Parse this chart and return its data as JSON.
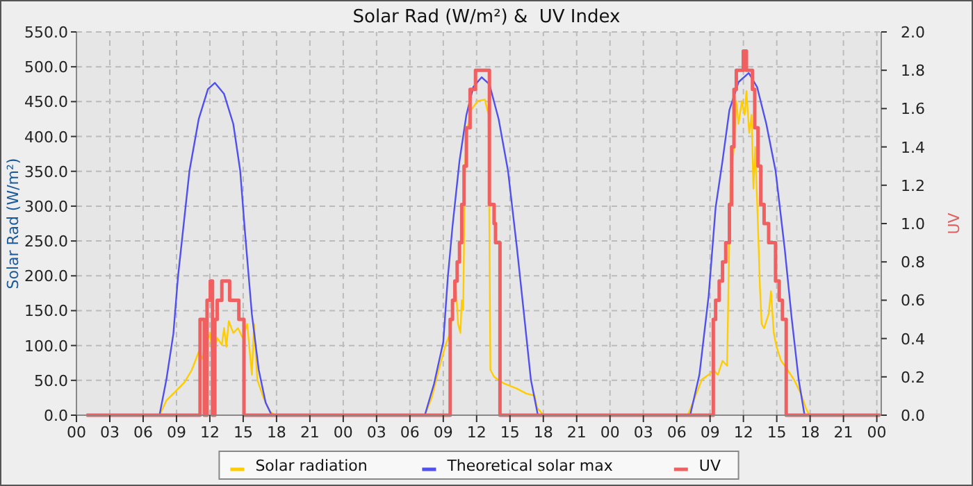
{
  "chart_data": {
    "type": "line",
    "title": "Solar Rad (W/m²) &  UV Index",
    "ylabel": "Solar Rad (W/m²)",
    "y2label": "UV",
    "xlim": [
      0,
      72.4
    ],
    "xticks": [
      {
        "value": 0,
        "label": "00"
      },
      {
        "value": 3,
        "label": "03"
      },
      {
        "value": 6,
        "label": "06"
      },
      {
        "value": 9,
        "label": "09"
      },
      {
        "value": 12,
        "label": "12"
      },
      {
        "value": 15,
        "label": "15"
      },
      {
        "value": 18,
        "label": "18"
      },
      {
        "value": 21,
        "label": "21"
      },
      {
        "value": 24,
        "label": "00"
      },
      {
        "value": 27,
        "label": "03"
      },
      {
        "value": 30,
        "label": "06"
      },
      {
        "value": 33,
        "label": "09"
      },
      {
        "value": 36,
        "label": "12"
      },
      {
        "value": 39,
        "label": "15"
      },
      {
        "value": 42,
        "label": "18"
      },
      {
        "value": 45,
        "label": "21"
      },
      {
        "value": 48,
        "label": "00"
      },
      {
        "value": 51,
        "label": "03"
      },
      {
        "value": 54,
        "label": "06"
      },
      {
        "value": 57,
        "label": "09"
      },
      {
        "value": 60,
        "label": "12"
      },
      {
        "value": 63,
        "label": "15"
      },
      {
        "value": 66,
        "label": "18"
      },
      {
        "value": 69,
        "label": "21"
      },
      {
        "value": 72,
        "label": "00"
      }
    ],
    "ylim": [
      0,
      550
    ],
    "yticks": [
      {
        "value": 0,
        "label": "0.0"
      },
      {
        "value": 50,
        "label": "50.0"
      },
      {
        "value": 100,
        "label": "100.0"
      },
      {
        "value": 150,
        "label": "150.0"
      },
      {
        "value": 200,
        "label": "200.0"
      },
      {
        "value": 250,
        "label": "250.0"
      },
      {
        "value": 300,
        "label": "300.0"
      },
      {
        "value": 350,
        "label": "350.0"
      },
      {
        "value": 400,
        "label": "400.0"
      },
      {
        "value": 450,
        "label": "450.0"
      },
      {
        "value": 500,
        "label": "500.0"
      },
      {
        "value": 550,
        "label": "550.0"
      }
    ],
    "y2lim": [
      0,
      2
    ],
    "y2ticks": [
      {
        "value": 0,
        "label": "0.0"
      },
      {
        "value": 0.2,
        "label": "0.2"
      },
      {
        "value": 0.4,
        "label": "0.4"
      },
      {
        "value": 0.6,
        "label": "0.6"
      },
      {
        "value": 0.8,
        "label": "0.8"
      },
      {
        "value": 1,
        "label": "1.0"
      },
      {
        "value": 1.2,
        "label": "1.2"
      },
      {
        "value": 1.4,
        "label": "1.4"
      },
      {
        "value": 1.6,
        "label": "1.6"
      },
      {
        "value": 1.8,
        "label": "1.8"
      },
      {
        "value": 2,
        "label": "2.0"
      }
    ],
    "grid": true,
    "legend": "bottom",
    "line_style": "solid",
    "series": [
      {
        "name": "Solar radiation",
        "color": "#ffcc00",
        "x": [
          0.9,
          7.47,
          8.09,
          8.72,
          9.34,
          9.75,
          10.38,
          11.0,
          11.33,
          11.5,
          12.04,
          12.24,
          12.66,
          13.08,
          13.28,
          13.49,
          13.7,
          14.11,
          14.53,
          14.94,
          15.36,
          15.78,
          15.98,
          16.27,
          16.82,
          17.44,
          17.85,
          31.34,
          31.96,
          32.59,
          33.21,
          33.62,
          33.91,
          34.16,
          34.33,
          34.54,
          34.66,
          34.79,
          34.95,
          35.16,
          35.49,
          36.11,
          36.74,
          37.07,
          37.24,
          37.57,
          38.4,
          39.64,
          40.47,
          41.22,
          41.43,
          42.0,
          55.0,
          55.63,
          56.25,
          56.87,
          57.29,
          57.7,
          58.12,
          58.53,
          58.82,
          59.15,
          59.36,
          59.56,
          59.86,
          60.11,
          60.27,
          60.52,
          60.73,
          60.9,
          61.06,
          61.31,
          61.48,
          61.64,
          61.86,
          62.27,
          62.48,
          62.73,
          62.98,
          63.39,
          63.72,
          64.55,
          65.17,
          65.6,
          65.92,
          72.3
        ],
        "values": [
          0,
          0,
          21,
          31,
          41,
          48,
          65,
          91,
          81,
          98,
          118,
          78,
          111,
          101,
          125,
          98,
          135,
          118,
          125,
          111,
          131,
          58,
          131,
          51,
          25,
          5,
          0,
          0,
          25,
          65,
          101,
          118,
          165,
          178,
          131,
          118,
          165,
          151,
          358,
          411,
          438,
          451,
          453,
          431,
          65,
          55,
          46,
          38,
          31,
          28,
          11,
          0,
          0,
          25,
          51,
          58,
          65,
          58,
          78,
          71,
          331,
          385,
          451,
          418,
          451,
          431,
          465,
          405,
          431,
          325,
          385,
          271,
          185,
          131,
          125,
          145,
          178,
          118,
          98,
          78,
          71,
          51,
          31,
          11,
          0,
          0
        ]
      },
      {
        "name": "Theoretical solar max",
        "color": "#5050f0",
        "x": [
          0.9,
          7.47,
          8.09,
          8.72,
          9.13,
          10.17,
          11.0,
          11.83,
          12.45,
          13.28,
          14.11,
          14.73,
          15.15,
          15.78,
          16.4,
          17.02,
          17.56,
          31.34,
          32.17,
          33.0,
          33.41,
          33.83,
          34.46,
          35.08,
          35.7,
          36.45,
          37.15,
          37.98,
          38.82,
          39.64,
          40.26,
          40.88,
          41.51,
          55.21,
          56.04,
          56.87,
          57.5,
          58.12,
          58.74,
          59.56,
          60.48,
          61.23,
          62.06,
          62.89,
          63.72,
          64.35,
          64.97,
          65.5,
          72.3
        ],
        "values": [
          0,
          0,
          51,
          117,
          198,
          351,
          425,
          468,
          477,
          461,
          418,
          351,
          265,
          145,
          65,
          18,
          0,
          0,
          45,
          105,
          198,
          271,
          365,
          431,
          471,
          485,
          475,
          425,
          351,
          238,
          145,
          51,
          0,
          0,
          58,
          171,
          298,
          365,
          438,
          478,
          491,
          471,
          418,
          351,
          238,
          138,
          51,
          0,
          0
        ]
      },
      {
        "name": "UV",
        "color": "#f06060",
        "type": "step",
        "axis": "y2",
        "x": [
          0.9,
          11.12,
          11.5,
          11.75,
          12.04,
          12.24,
          12.45,
          12.66,
          13.08,
          13.78,
          14.61,
          15.07,
          33.62,
          33.83,
          34.04,
          34.25,
          34.46,
          34.66,
          34.87,
          35.08,
          35.41,
          35.9,
          37.15,
          37.57,
          37.7,
          38.1,
          57.29,
          57.5,
          57.82,
          58.12,
          58.41,
          58.74,
          58.94,
          59.15,
          59.36,
          59.99,
          60.27,
          60.81,
          61.02,
          61.31,
          61.56,
          61.86,
          62.27,
          62.89,
          63.22,
          63.51,
          63.85,
          72.3
        ],
        "values": [
          0,
          0.5,
          0,
          0.6,
          0.7,
          0,
          0.5,
          0.6,
          0.7,
          0.6,
          0.5,
          0,
          0.5,
          0.6,
          0.7,
          0.8,
          0.9,
          1.1,
          1.3,
          1.5,
          1.7,
          1.8,
          1.1,
          1.0,
          0.9,
          0,
          0.5,
          0.6,
          0.7,
          0.8,
          0.9,
          1.1,
          1.4,
          1.7,
          1.8,
          1.9,
          1.8,
          1.7,
          1.5,
          1.3,
          1.1,
          1.0,
          0.9,
          0.7,
          0.6,
          0.5,
          0,
          0
        ]
      }
    ]
  }
}
